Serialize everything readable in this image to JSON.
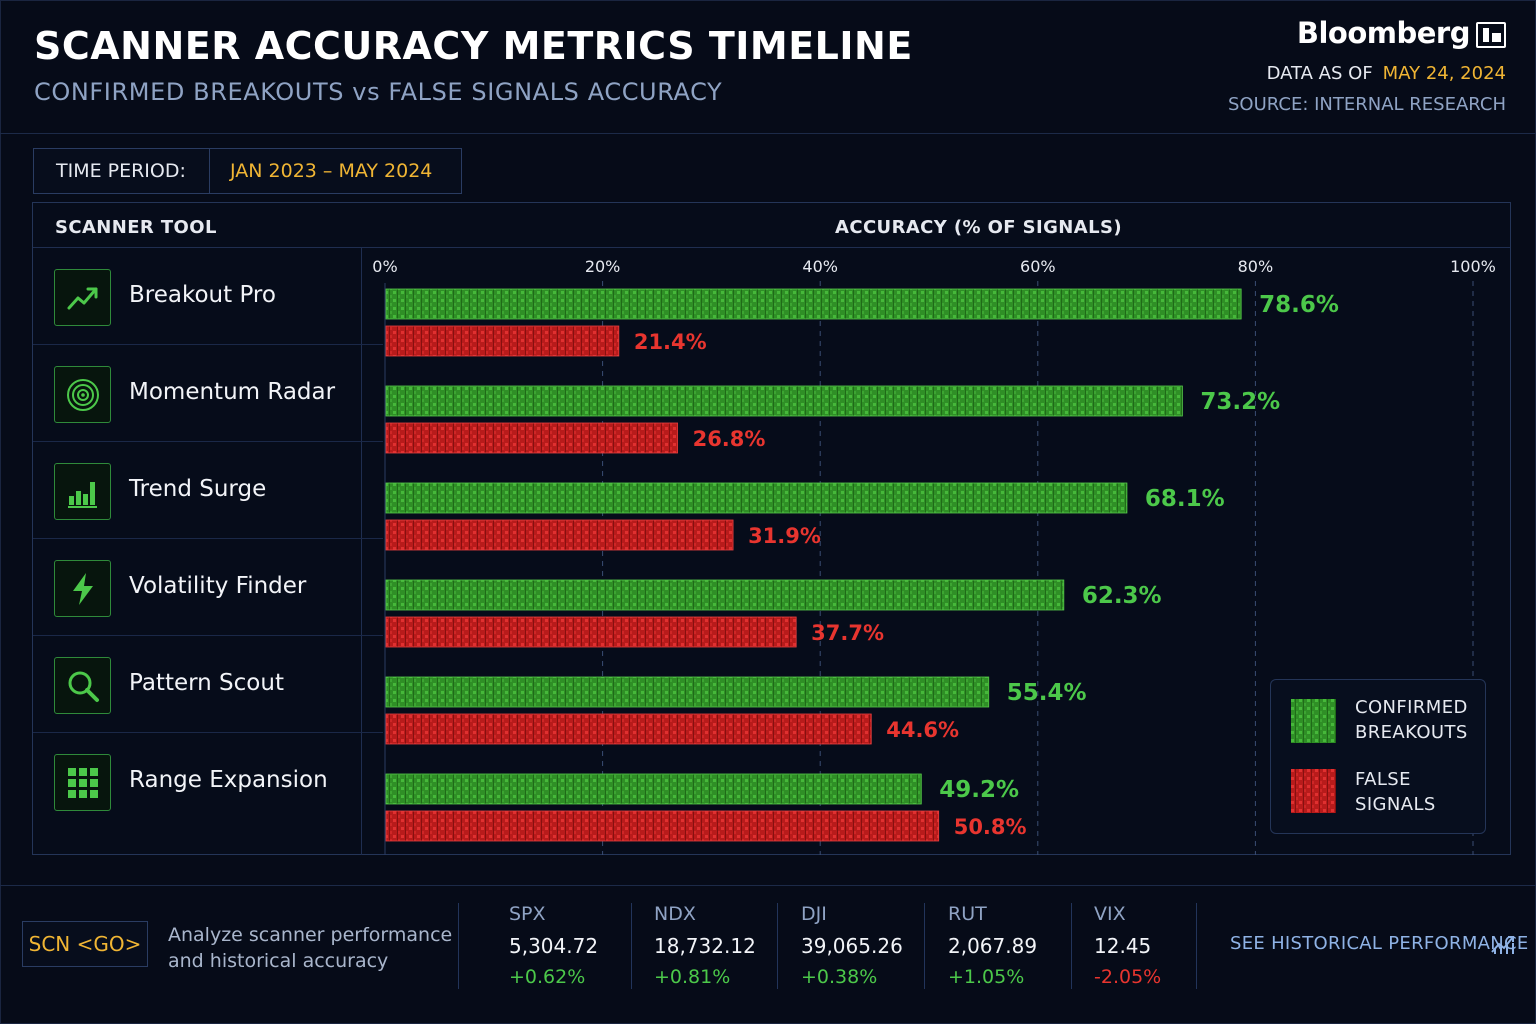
{
  "header": {
    "title": "SCANNER ACCURACY METRICS TIMELINE",
    "subtitle": "CONFIRMED BREAKOUTS vs FALSE SIGNALS ACCURACY",
    "brand": "Bloomberg",
    "data_as_of_label": "DATA AS OF",
    "data_as_of_date": "MAY 24, 2024",
    "source": "SOURCE: INTERNAL RESEARCH"
  },
  "period": {
    "label": "TIME PERIOD:",
    "value": "JAN 2023 – MAY 2024"
  },
  "columns": {
    "tool": "SCANNER TOOL",
    "accuracy": "ACCURACY (% OF SIGNALS)"
  },
  "tools": [
    {
      "name": "Breakout Pro",
      "icon": "trend-up-icon"
    },
    {
      "name": "Momentum Radar",
      "icon": "radar-icon"
    },
    {
      "name": "Trend Surge",
      "icon": "bar-chart-icon"
    },
    {
      "name": "Volatility Finder",
      "icon": "lightning-icon"
    },
    {
      "name": "Pattern Scout",
      "icon": "magnifier-icon"
    },
    {
      "name": "Range Expansion",
      "icon": "grid-icon"
    }
  ],
  "chart_data": {
    "type": "bar",
    "orientation": "horizontal",
    "categories": [
      "Breakout Pro",
      "Momentum Radar",
      "Trend Surge",
      "Volatility Finder",
      "Pattern Scout",
      "Range Expansion"
    ],
    "series": [
      {
        "name": "CONFIRMED BREAKOUTS",
        "values": [
          78.6,
          73.2,
          68.1,
          62.3,
          55.4,
          49.2
        ],
        "labels": [
          "78.6%",
          "73.2%",
          "68.1%",
          "62.3%",
          "55.4%",
          "49.2%"
        ],
        "color": "#3aa82f"
      },
      {
        "name": "FALSE SIGNALS",
        "values": [
          21.4,
          26.8,
          31.9,
          37.7,
          44.6,
          50.8
        ],
        "labels": [
          "21.4%",
          "26.8%",
          "31.9%",
          "37.7%",
          "44.6%",
          "50.8%"
        ],
        "color": "#c81e1e"
      }
    ],
    "x_ticks": [
      "0%",
      "20%",
      "40%",
      "60%",
      "80%",
      "100%"
    ],
    "xlim": [
      0,
      100
    ],
    "xlabel": "ACCURACY (% OF SIGNALS)",
    "grid": true,
    "legend": {
      "position": "bottom-right",
      "items": [
        [
          "CONFIRMED",
          "BREAKOUTS"
        ],
        [
          "FALSE",
          "SIGNALS"
        ]
      ]
    }
  },
  "footer": {
    "command": "SCN <GO>",
    "description_line1": "Analyze scanner performance",
    "description_line2": "and historical accuracy",
    "tickers": [
      {
        "symbol": "SPX",
        "price": "5,304.72",
        "change": "+0.62%",
        "direction": "up"
      },
      {
        "symbol": "NDX",
        "price": "18,732.12",
        "change": "+0.81%",
        "direction": "up"
      },
      {
        "symbol": "DJI",
        "price": "39,065.26",
        "change": "+0.38%",
        "direction": "up"
      },
      {
        "symbol": "RUT",
        "price": "2,067.89",
        "change": "+1.05%",
        "direction": "up"
      },
      {
        "symbol": "VIX",
        "price": "12.45",
        "change": "-2.05%",
        "direction": "down"
      }
    ],
    "history_link": "SEE HISTORICAL PERFORMANCE",
    "history_icon": "chart-link-icon"
  },
  "colors": {
    "accent": "#f0b534",
    "positive": "#4cc84a",
    "negative": "#e8352f",
    "bar_green": "#3aa82f",
    "bar_red": "#c81e1e"
  }
}
